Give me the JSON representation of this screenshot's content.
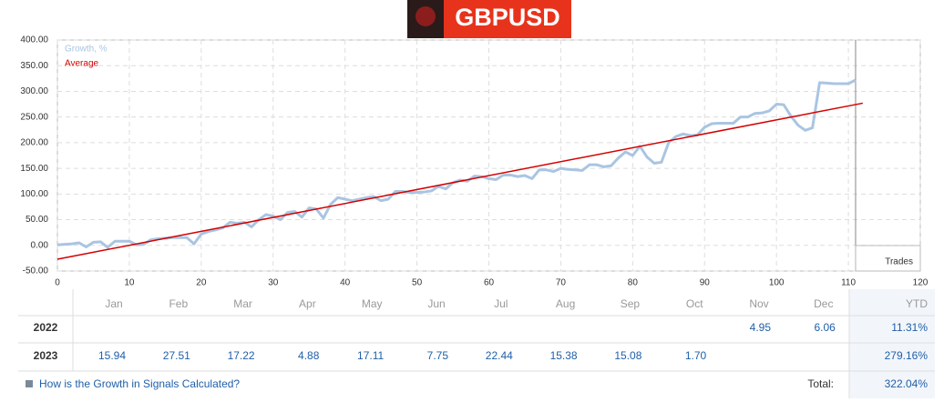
{
  "header": {
    "title": "GBPUSD"
  },
  "chart_data": {
    "type": "line",
    "x_label": "Trades",
    "series": [
      {
        "name": "Growth, %",
        "color": "#a9c5e2",
        "x": [
          0,
          1,
          2,
          3,
          4,
          5,
          6,
          7,
          8,
          9,
          10,
          11,
          12,
          13,
          14,
          15,
          16,
          17,
          18,
          19,
          20,
          21,
          22,
          23,
          24,
          25,
          26,
          27,
          28,
          29,
          30,
          31,
          32,
          33,
          34,
          35,
          36,
          37,
          38,
          39,
          40,
          41,
          42,
          43,
          44,
          45,
          46,
          47,
          48,
          49,
          50,
          51,
          52,
          53,
          54,
          55,
          56,
          57,
          58,
          59,
          60,
          61,
          62,
          63,
          64,
          65,
          66,
          67,
          68,
          69,
          70,
          71,
          72,
          73,
          74,
          75,
          76,
          77,
          78,
          79,
          80,
          81,
          82,
          83,
          84,
          85,
          86,
          87,
          88,
          89,
          90,
          91,
          92,
          93,
          94,
          95,
          96,
          97,
          98,
          99,
          100,
          101,
          102,
          103,
          104,
          105,
          106,
          107,
          108,
          109,
          110,
          111
        ],
        "values": [
          1,
          2,
          3,
          5,
          -3,
          6,
          7,
          -4,
          8,
          8,
          8,
          1,
          2,
          11,
          13,
          14,
          15,
          15,
          15,
          3,
          22,
          27,
          30,
          34,
          45,
          43,
          45,
          36,
          50,
          60,
          57,
          50,
          64,
          66,
          55,
          73,
          71,
          53,
          80,
          93,
          90,
          87,
          90,
          93,
          95,
          87,
          90,
          105,
          105,
          103,
          103,
          104,
          106,
          115,
          110,
          122,
          127,
          125,
          135,
          134,
          130,
          128,
          137,
          137,
          134,
          136,
          130,
          147,
          147,
          144,
          150,
          148,
          147,
          146,
          157,
          157,
          153,
          155,
          170,
          182,
          175,
          193,
          172,
          160,
          162,
          200,
          212,
          217,
          214,
          215,
          230,
          237,
          238,
          238,
          238,
          250,
          250,
          257,
          258,
          262,
          275,
          274,
          252,
          234,
          224,
          229,
          317,
          316,
          315,
          315,
          315,
          322
        ]
      },
      {
        "name": "Average",
        "color": "#d40000",
        "x": [
          0,
          112
        ],
        "values": [
          -27,
          277
        ]
      }
    ],
    "xlim": [
      0,
      120
    ],
    "xticks": [
      0,
      10,
      20,
      30,
      40,
      50,
      60,
      70,
      80,
      90,
      100,
      110,
      120
    ],
    "ylim": [
      -50,
      400
    ],
    "yticks": [
      {
        "value": -50,
        "label": "-50.00"
      },
      {
        "value": 0,
        "label": "0.00"
      },
      {
        "value": 50,
        "label": "50.00"
      },
      {
        "value": 100,
        "label": "100.00"
      },
      {
        "value": 150,
        "label": "150.00"
      },
      {
        "value": 200,
        "label": "200.00"
      },
      {
        "value": 250,
        "label": "250.00"
      },
      {
        "value": 300,
        "label": "300.00"
      },
      {
        "value": 350,
        "label": "350.00"
      },
      {
        "value": 400,
        "label": "400.00"
      }
    ],
    "grid": true
  },
  "table": {
    "months": [
      "Jan",
      "Feb",
      "Mar",
      "Apr",
      "May",
      "Jun",
      "Jul",
      "Aug",
      "Sep",
      "Oct",
      "Nov",
      "Dec"
    ],
    "ytd_header": "YTD",
    "rows": [
      {
        "year": "2022",
        "values": [
          null,
          null,
          null,
          null,
          null,
          null,
          null,
          null,
          null,
          null,
          "4.95",
          "6.06"
        ],
        "ytd": "11.31%"
      },
      {
        "year": "2023",
        "values": [
          "15.94",
          "27.51",
          "17.22",
          "4.88",
          "17.11",
          "7.75",
          "22.44",
          "15.38",
          "15.08",
          "1.70",
          null,
          null
        ],
        "ytd": "279.16%"
      }
    ],
    "footer": {
      "link": "How is the Growth in Signals Calculated?",
      "total_label": "Total:",
      "total": "322.04%"
    }
  }
}
